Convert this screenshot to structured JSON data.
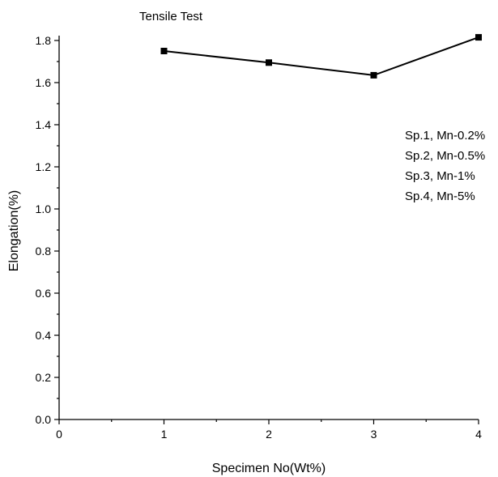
{
  "chart_data": {
    "type": "line",
    "title": "Tensile Test",
    "xlabel": "Specimen No(Wt%)",
    "ylabel": "Elongation(%)",
    "xlim": [
      0,
      4
    ],
    "ylim": [
      0,
      1.8
    ],
    "x_ticks": [
      "0",
      "1",
      "2",
      "3",
      "4"
    ],
    "y_ticks": [
      "0.0",
      "0.2",
      "0.4",
      "0.6",
      "0.8",
      "1.0",
      "1.2",
      "1.4",
      "1.6",
      "1.8"
    ],
    "grid": false,
    "x": [
      1,
      2,
      3,
      4
    ],
    "series": [
      {
        "values": [
          1.75,
          1.695,
          1.635,
          1.815
        ],
        "color": "#000000",
        "marker": "square"
      }
    ],
    "legend": {
      "placement": "right",
      "entries": [
        "Sp.1, Mn-0.2%",
        "Sp.2, Mn-0.5%",
        "Sp.3, Mn-1%",
        "Sp.4, Mn-5%"
      ]
    }
  }
}
